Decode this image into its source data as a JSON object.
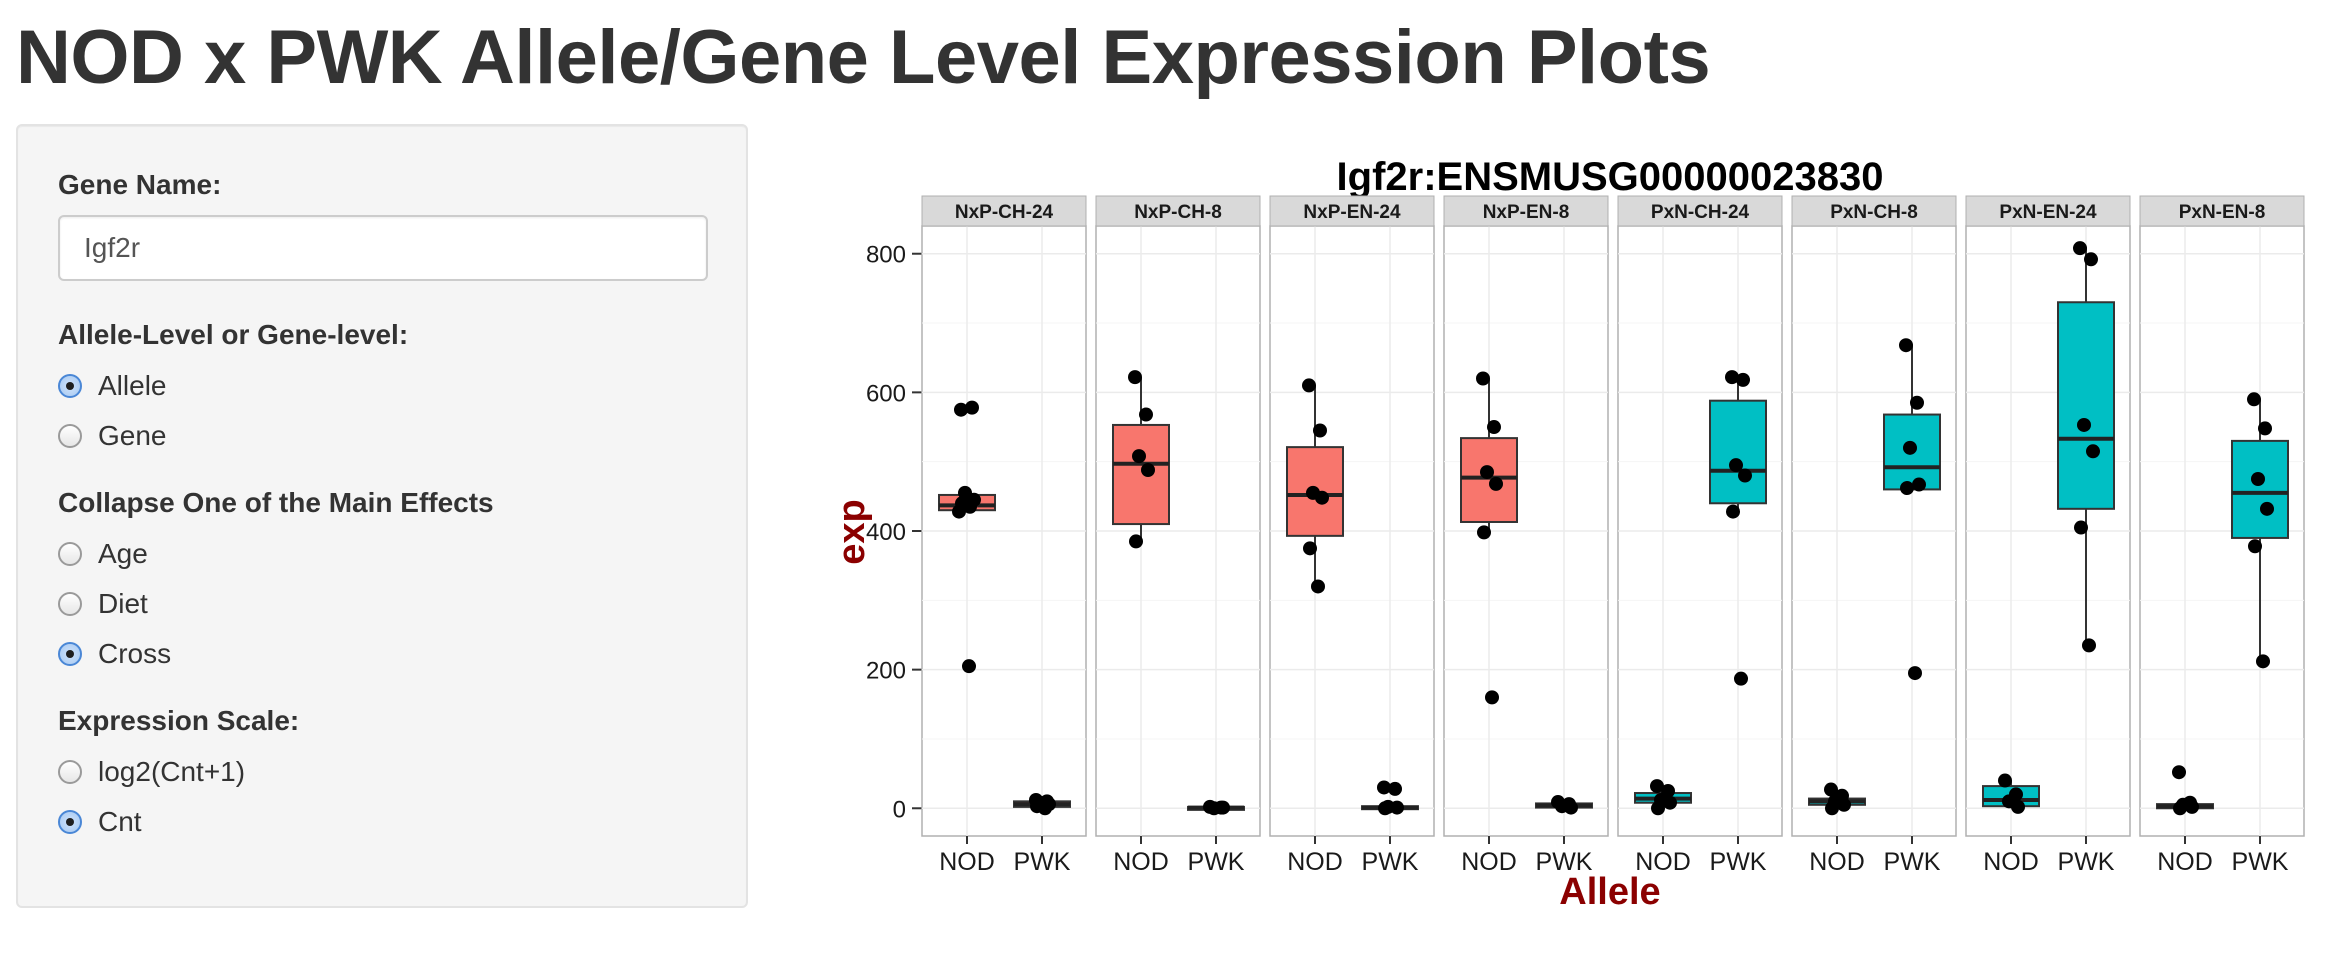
{
  "page": {
    "title": "NOD x PWK Allele/Gene Level Expression Plots"
  },
  "sidebar": {
    "gene_label": "Gene Name:",
    "gene_value": "Igf2r",
    "level_label": "Allele-Level or Gene-level:",
    "level_options": [
      {
        "label": "Allele",
        "checked": true
      },
      {
        "label": "Gene",
        "checked": false
      }
    ],
    "collapse_label": "Collapse One of the Main Effects",
    "collapse_options": [
      {
        "label": "Age",
        "checked": false
      },
      {
        "label": "Diet",
        "checked": false
      },
      {
        "label": "Cross",
        "checked": true
      }
    ],
    "scale_label": "Expression Scale:",
    "scale_options": [
      {
        "label": "log2(Cnt+1)",
        "checked": false
      },
      {
        "label": "Cnt",
        "checked": true
      }
    ]
  },
  "colors": {
    "nod_fill": "#F8766D",
    "pwk_fill": "#00BFC4",
    "axis_title": "#8B0000",
    "panel_bg": "#FFFFFF",
    "strip_bg": "#D9D9D9",
    "grid": "#EBEBEB"
  },
  "chart_data": {
    "type": "boxplot",
    "title": "Igf2r:ENSMUSG00000023830",
    "xlabel": "Allele",
    "ylabel": "exp",
    "ylim": [
      -40,
      840
    ],
    "yticks": [
      0,
      200,
      400,
      600,
      800
    ],
    "grid": true,
    "categories": [
      "NOD",
      "PWK"
    ],
    "panels": [
      {
        "name": "NxP-CH-24",
        "fill_color": "#F8766D",
        "boxes": [
          {
            "allele": "NOD",
            "q1": 430,
            "median": 437,
            "q3": 452,
            "whisker_low": 430,
            "whisker_high": 452,
            "points": [
              575,
              578,
              455,
              445,
              440,
              435,
              428,
              205
            ]
          },
          {
            "allele": "PWK",
            "q1": 2,
            "median": 6,
            "q3": 10,
            "whisker_low": 0,
            "whisker_high": 12,
            "points": [
              12,
              10,
              8,
              6,
              3,
              0
            ]
          }
        ]
      },
      {
        "name": "NxP-CH-8",
        "fill_color": "#F8766D",
        "boxes": [
          {
            "allele": "NOD",
            "q1": 410,
            "median": 497,
            "q3": 553,
            "whisker_low": 385,
            "whisker_high": 622,
            "points": [
              622,
              568,
              508,
              488,
              385
            ]
          },
          {
            "allele": "PWK",
            "q1": 0,
            "median": 1,
            "q3": 2,
            "whisker_low": 0,
            "whisker_high": 3,
            "points": [
              2,
              1,
              0,
              1
            ]
          }
        ]
      },
      {
        "name": "NxP-EN-24",
        "fill_color": "#F8766D",
        "boxes": [
          {
            "allele": "NOD",
            "q1": 393,
            "median": 452,
            "q3": 521,
            "whisker_low": 320,
            "whisker_high": 610,
            "points": [
              610,
              545,
              455,
              448,
              375,
              320
            ]
          },
          {
            "allele": "PWK",
            "q1": 0,
            "median": 1,
            "q3": 3,
            "whisker_low": 0,
            "whisker_high": 5,
            "points": [
              30,
              28,
              2,
              1,
              0
            ]
          }
        ]
      },
      {
        "name": "NxP-EN-8",
        "fill_color": "#F8766D",
        "boxes": [
          {
            "allele": "NOD",
            "q1": 413,
            "median": 477,
            "q3": 534,
            "whisker_low": 395,
            "whisker_high": 620,
            "points": [
              620,
              550,
              485,
              468,
              398,
              160
            ]
          },
          {
            "allele": "PWK",
            "q1": 1,
            "median": 4,
            "q3": 7,
            "whisker_low": 0,
            "whisker_high": 9,
            "points": [
              9,
              6,
              3,
              1
            ]
          }
        ]
      },
      {
        "name": "PxN-CH-24",
        "fill_color": "#00BFC4",
        "boxes": [
          {
            "allele": "NOD",
            "q1": 8,
            "median": 14,
            "q3": 22,
            "whisker_low": 0,
            "whisker_high": 32,
            "points": [
              32,
              25,
              12,
              8,
              0
            ]
          },
          {
            "allele": "PWK",
            "q1": 440,
            "median": 487,
            "q3": 588,
            "whisker_low": 428,
            "whisker_high": 622,
            "points": [
              622,
              618,
              495,
              480,
              428,
              187
            ]
          }
        ]
      },
      {
        "name": "PxN-CH-8",
        "fill_color": "#00BFC4",
        "boxes": [
          {
            "allele": "NOD",
            "q1": 5,
            "median": 10,
            "q3": 14,
            "whisker_low": 0,
            "whisker_high": 27,
            "points": [
              27,
              18,
              10,
              5,
              0
            ]
          },
          {
            "allele": "PWK",
            "q1": 460,
            "median": 492,
            "q3": 568,
            "whisker_low": 460,
            "whisker_high": 668,
            "points": [
              668,
              585,
              520,
              467,
              462,
              195
            ]
          }
        ]
      },
      {
        "name": "PxN-EN-24",
        "fill_color": "#00BFC4",
        "boxes": [
          {
            "allele": "NOD",
            "q1": 3,
            "median": 12,
            "q3": 32,
            "whisker_low": 0,
            "whisker_high": 40,
            "points": [
              40,
              20,
              10,
              2
            ]
          },
          {
            "allele": "PWK",
            "q1": 432,
            "median": 533,
            "q3": 730,
            "whisker_low": 235,
            "whisker_high": 808,
            "points": [
              808,
              792,
              553,
              515,
              405,
              235
            ]
          }
        ]
      },
      {
        "name": "PxN-EN-8",
        "fill_color": "#00BFC4",
        "boxes": [
          {
            "allele": "NOD",
            "q1": 0,
            "median": 3,
            "q3": 6,
            "whisker_low": 0,
            "whisker_high": 10,
            "points": [
              52,
              8,
              5,
              2,
              0
            ]
          },
          {
            "allele": "PWK",
            "q1": 390,
            "median": 455,
            "q3": 530,
            "whisker_low": 212,
            "whisker_high": 590,
            "points": [
              590,
              548,
              475,
              432,
              378,
              212
            ]
          }
        ]
      }
    ]
  }
}
